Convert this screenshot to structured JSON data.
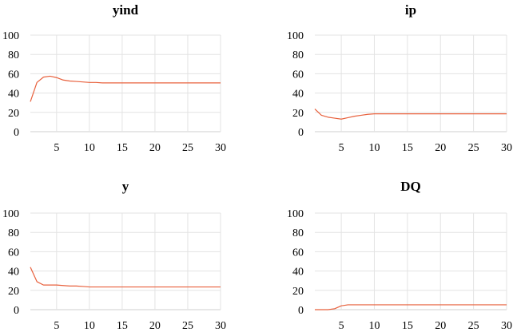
{
  "chart_data": [
    {
      "type": "line",
      "title": "yind",
      "xlabel": "",
      "ylabel": "",
      "xlim": [
        1,
        30
      ],
      "ylim": [
        0,
        100
      ],
      "xticks": [
        5,
        10,
        15,
        20,
        25,
        30
      ],
      "yticks": [
        0,
        20,
        40,
        60,
        80,
        100
      ],
      "grid": true,
      "series": [
        {
          "color": "#e8603c",
          "x": [
            1,
            2,
            3,
            4,
            5,
            6,
            7,
            8,
            9,
            10,
            11,
            12,
            13,
            14,
            15,
            16,
            17,
            18,
            19,
            20,
            21,
            22,
            23,
            24,
            25,
            26,
            27,
            28,
            29,
            30
          ],
          "values": [
            31,
            51,
            56.5,
            57.5,
            56,
            53.5,
            52.5,
            52,
            51.5,
            51,
            51,
            50.5,
            50.5,
            50.5,
            50.5,
            50.5,
            50.5,
            50.5,
            50.5,
            50.5,
            50.5,
            50.5,
            50.5,
            50.5,
            50.5,
            50.5,
            50.5,
            50.5,
            50.5,
            50.5
          ]
        }
      ]
    },
    {
      "type": "line",
      "title": "ip",
      "xlabel": "",
      "ylabel": "",
      "xlim": [
        1,
        30
      ],
      "ylim": [
        0,
        100
      ],
      "xticks": [
        5,
        10,
        15,
        20,
        25,
        30
      ],
      "yticks": [
        0,
        20,
        40,
        60,
        80,
        100
      ],
      "grid": true,
      "series": [
        {
          "color": "#e8603c",
          "x": [
            1,
            2,
            3,
            4,
            5,
            6,
            7,
            8,
            9,
            10,
            11,
            12,
            13,
            14,
            15,
            16,
            17,
            18,
            19,
            20,
            21,
            22,
            23,
            24,
            25,
            26,
            27,
            28,
            29,
            30
          ],
          "values": [
            23.5,
            17,
            15,
            14,
            13,
            14.5,
            16,
            17,
            18,
            18.5,
            18.5,
            18.5,
            18.5,
            18.5,
            18.5,
            18.5,
            18.5,
            18.5,
            18.5,
            18.5,
            18.5,
            18.5,
            18.5,
            18.5,
            18.5,
            18.5,
            18.5,
            18.5,
            18.5,
            18.5
          ]
        }
      ]
    },
    {
      "type": "line",
      "title": "y",
      "xlabel": "",
      "ylabel": "",
      "xlim": [
        1,
        30
      ],
      "ylim": [
        0,
        100
      ],
      "xticks": [
        5,
        10,
        15,
        20,
        25,
        30
      ],
      "yticks": [
        0,
        20,
        40,
        60,
        80,
        100
      ],
      "grid": true,
      "series": [
        {
          "color": "#e8603c",
          "x": [
            1,
            2,
            3,
            4,
            5,
            6,
            7,
            8,
            9,
            10,
            11,
            12,
            13,
            14,
            15,
            16,
            17,
            18,
            19,
            20,
            21,
            22,
            23,
            24,
            25,
            26,
            27,
            28,
            29,
            30
          ],
          "values": [
            44,
            29,
            25.5,
            25.5,
            25.5,
            25,
            24.5,
            24.5,
            24,
            23.5,
            23.5,
            23.5,
            23.5,
            23.5,
            23.5,
            23.5,
            23.5,
            23.5,
            23.5,
            23.5,
            23.5,
            23.5,
            23.5,
            23.5,
            23.5,
            23.5,
            23.5,
            23.5,
            23.5,
            23.5
          ]
        }
      ]
    },
    {
      "type": "line",
      "title": "DQ",
      "xlabel": "",
      "ylabel": "",
      "xlim": [
        1,
        30
      ],
      "ylim": [
        0,
        100
      ],
      "xticks": [
        5,
        10,
        15,
        20,
        25,
        30
      ],
      "yticks": [
        0,
        20,
        40,
        60,
        80,
        100
      ],
      "grid": true,
      "series": [
        {
          "color": "#e8603c",
          "x": [
            1,
            2,
            3,
            4,
            5,
            6,
            7,
            8,
            9,
            10,
            11,
            12,
            13,
            14,
            15,
            16,
            17,
            18,
            19,
            20,
            21,
            22,
            23,
            24,
            25,
            26,
            27,
            28,
            29,
            30
          ],
          "values": [
            0,
            0,
            0,
            1,
            4,
            5,
            5,
            5,
            5,
            5,
            5,
            5,
            5,
            5,
            5,
            5,
            5,
            5,
            5,
            5,
            5,
            5,
            5,
            5,
            5,
            5,
            5,
            5,
            5,
            5
          ]
        }
      ]
    }
  ]
}
